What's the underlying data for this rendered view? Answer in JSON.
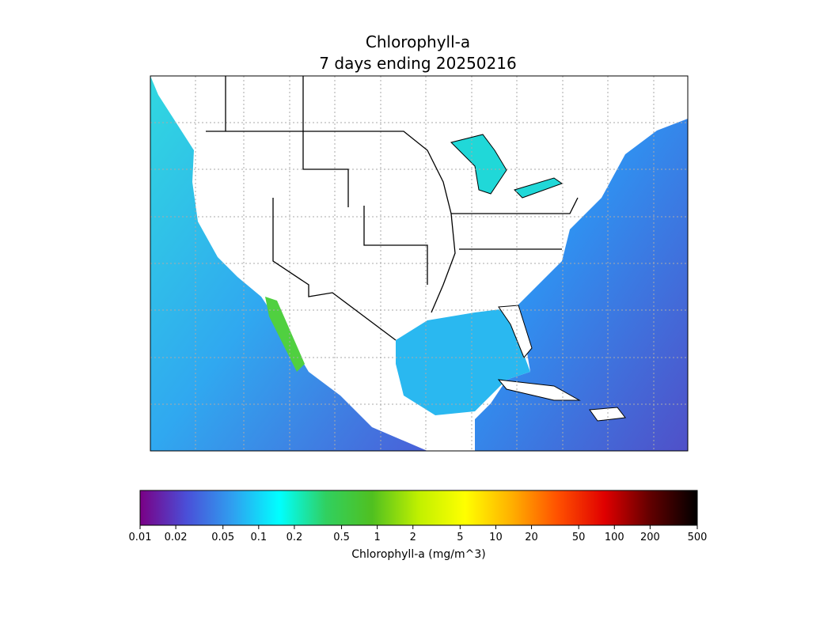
{
  "title": "Chlorophyll-a",
  "subtitle": "7 days ending 20250216",
  "colorbar": {
    "label": "Chlorophyll-a (mg/m^3)",
    "scale": "log",
    "lim": [
      0.01,
      500
    ],
    "ticks": [
      0.01,
      0.02,
      0.05,
      0.1,
      0.2,
      0.5,
      1,
      2,
      5,
      10,
      20,
      50,
      100,
      200,
      500
    ],
    "colors": [
      "#7a0085",
      "#4a4fd8",
      "#2fa0f0",
      "#00ffff",
      "#30d060",
      "#50c020",
      "#c0f000",
      "#ffff00",
      "#ffb000",
      "#ff5000",
      "#e00000",
      "#600000",
      "#000000"
    ]
  }
}
